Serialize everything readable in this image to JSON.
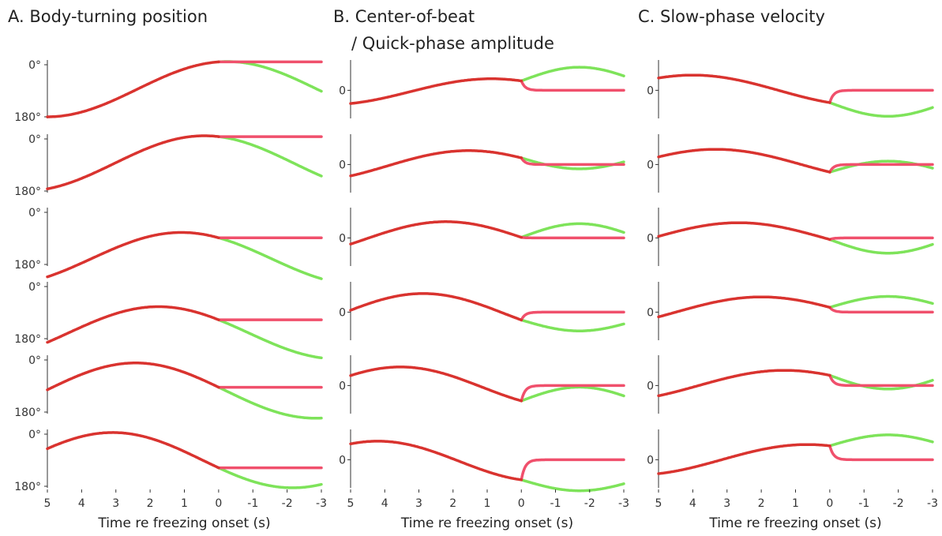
{
  "panels": [
    {
      "id": "A",
      "title_line1": "A. Body-turning position",
      "title_line2": ""
    },
    {
      "id": "B",
      "title_line1": "B. Center-of-beat",
      "title_line2": "/ Quick-phase amplitude"
    },
    {
      "id": "C",
      "title_line1": "C. Slow-phase velocity",
      "title_line2": ""
    }
  ],
  "colors": {
    "red": "#d9332f",
    "pink": "#f0506c",
    "green": "#7ee35a",
    "axis": "#333333"
  },
  "chart_data": {
    "type": "line",
    "xlabel": "Time re freezing onset (s)",
    "x_ticks": [
      5,
      4,
      3,
      2,
      1,
      0,
      -1,
      -2,
      -3
    ],
    "x_tick_labels": [
      "5",
      "4",
      "3",
      "2",
      "1",
      "0",
      "-1",
      "-2",
      "-3"
    ],
    "xlim": [
      5,
      -3
    ],
    "onset": 0,
    "rows": 6,
    "panel_A": {
      "ytick_labels": [
        "0°",
        "180°"
      ],
      "ytick_values": [
        0,
        180
      ],
      "rows": [
        {
          "ylim": [
            0,
            180
          ],
          "phase": 0.0,
          "hold": 178
        },
        {
          "ylim": [
            0,
            180
          ],
          "phase": 0.4,
          "hold": 130
        },
        {
          "ylim": [
            -80,
            110
          ],
          "phase": 0.8,
          "hold": 40
        },
        {
          "ylim": [
            -80,
            110
          ],
          "phase": 1.2,
          "hold": 0
        },
        {
          "ylim": [
            -20,
            160
          ],
          "phase": 1.6,
          "hold": 0
        },
        {
          "ylim": [
            -5,
            175
          ],
          "phase": 2.0,
          "hold": 0
        }
      ]
    },
    "panel_B": {
      "ytick_labels": [
        "0"
      ],
      "ytick_values": [
        0
      ],
      "rows": [
        {
          "peak": 0.55,
          "phase": 0.0
        },
        {
          "peak": 0.65,
          "phase": 0.4
        },
        {
          "peak": 0.75,
          "phase": 0.8
        },
        {
          "peak": 0.85,
          "phase": 1.2
        },
        {
          "peak": 0.85,
          "phase": 1.6
        },
        {
          "peak": 0.85,
          "phase": 2.0
        }
      ]
    },
    "panel_C": {
      "ytick_labels": [
        "0"
      ],
      "ytick_values": [
        0
      ],
      "rows": [
        {
          "phase": 0.0
        },
        {
          "phase": 0.4
        },
        {
          "phase": 0.8
        },
        {
          "phase": 1.2
        },
        {
          "phase": 1.6
        },
        {
          "phase": 2.0
        }
      ]
    },
    "series": [
      {
        "color_key": "red"
      },
      {
        "color_key": "pink"
      },
      {
        "color_key": "green"
      }
    ]
  }
}
